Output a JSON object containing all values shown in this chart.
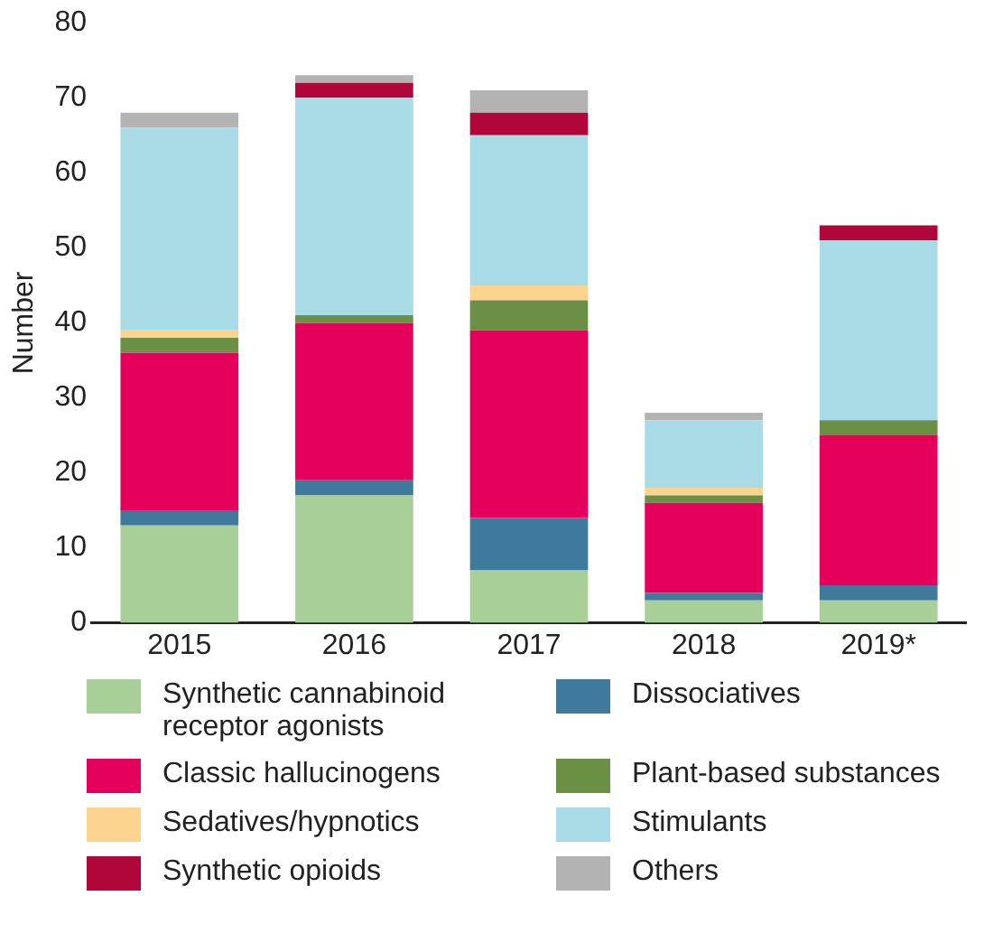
{
  "chart_data": {
    "type": "bar",
    "stacked": true,
    "ylabel": "Number",
    "categories": [
      "2015",
      "2016",
      "2017",
      "2018",
      "2019*"
    ],
    "ylim": [
      0,
      80
    ],
    "yticks": [
      0,
      10,
      20,
      30,
      40,
      50,
      60,
      70,
      80
    ],
    "grid": false,
    "legend": "bottom",
    "series": [
      {
        "name": "Synthetic cannabinoid receptor agonists",
        "color": "#a8cf98",
        "values": [
          13,
          17,
          7,
          3,
          3
        ]
      },
      {
        "name": "Dissociatives",
        "color": "#3f7a9c",
        "values": [
          2,
          2,
          7,
          1,
          2
        ]
      },
      {
        "name": "Classic hallucinogens",
        "color": "#e5005b",
        "values": [
          21,
          21,
          25,
          12,
          20
        ]
      },
      {
        "name": "Plant-based substances",
        "color": "#6a8f45",
        "values": [
          2,
          1,
          4,
          1,
          2
        ]
      },
      {
        "name": "Sedatives/hypnotics",
        "color": "#fcd38f",
        "values": [
          1,
          null,
          2,
          1,
          null
        ]
      },
      {
        "name": "Stimulants",
        "color": "#a8dbe6",
        "values": [
          27,
          29,
          20,
          9,
          24
        ]
      },
      {
        "name": "Synthetic opioids",
        "color": "#b1063a",
        "values": [
          null,
          2,
          3,
          null,
          2
        ]
      },
      {
        "name": "Others",
        "color": "#b3b3b3",
        "values": [
          2,
          1,
          3,
          1,
          null
        ]
      }
    ]
  }
}
